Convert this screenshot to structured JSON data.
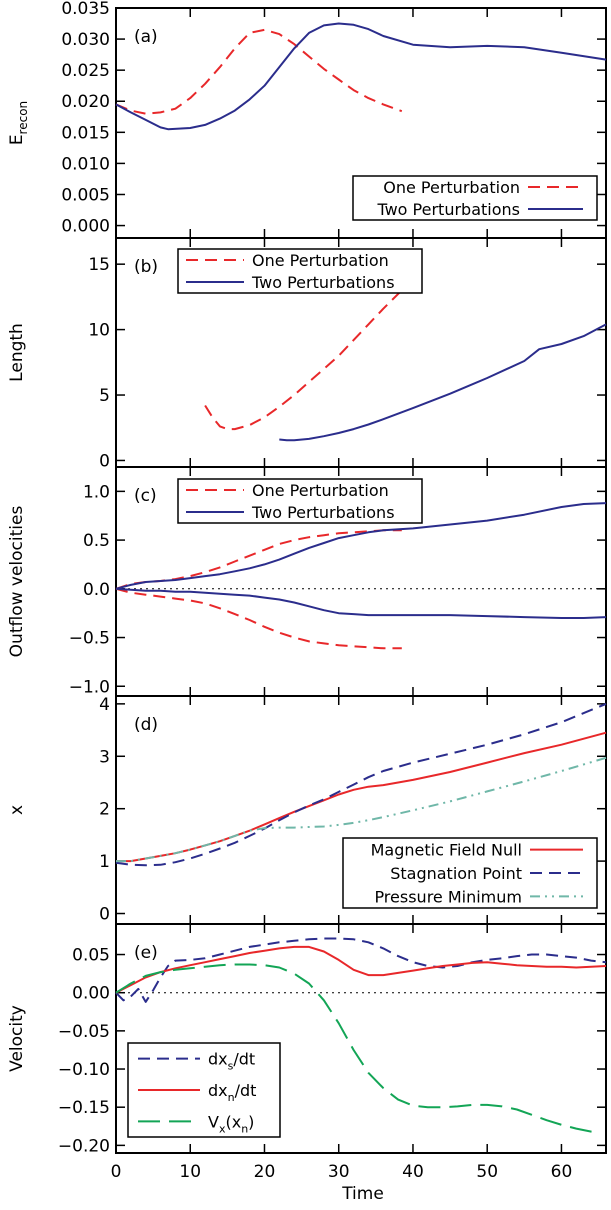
{
  "figure": {
    "xlabel": "Time",
    "xticks": [
      "0",
      "10",
      "20",
      "30",
      "40",
      "50",
      "60"
    ],
    "xlim": [
      0,
      66
    ]
  },
  "colors": {
    "red": "#e8282a",
    "blue": "#2b2d8c",
    "green": "#13a556",
    "teal": "#6fb7a8",
    "axis": "#000000"
  },
  "chart_data": [
    {
      "type": "line",
      "panel_label": "(a)",
      "ylabel": "E",
      "ylabel_sub": "recon",
      "ylim": [
        -0.002,
        0.035
      ],
      "yticks": [
        "0.000",
        "0.005",
        "0.010",
        "0.015",
        "0.020",
        "0.025",
        "0.030",
        "0.035"
      ],
      "legend_position": "bottom-right",
      "zero_line": false,
      "series": [
        {
          "name": "One Perturbation",
          "color": "#e8282a",
          "dash": "dashed",
          "x": [
            0,
            2,
            4,
            6,
            8,
            10,
            12,
            14,
            16,
            18,
            20,
            22,
            24,
            26,
            28,
            30,
            32,
            34,
            36,
            38.5
          ],
          "y": [
            0.0195,
            0.0185,
            0.018,
            0.0182,
            0.0188,
            0.0205,
            0.0228,
            0.0255,
            0.0285,
            0.031,
            0.0315,
            0.0308,
            0.0292,
            0.0272,
            0.0252,
            0.0235,
            0.0218,
            0.0205,
            0.0195,
            0.0184
          ]
        },
        {
          "name": "Two Perturbations",
          "color": "#2b2d8c",
          "dash": "solid",
          "x": [
            0,
            2,
            4,
            6,
            7,
            10,
            12,
            14,
            16,
            18,
            20,
            22,
            24,
            26,
            28,
            30,
            32,
            34,
            36,
            40,
            45,
            50,
            55,
            60,
            66
          ],
          "y": [
            0.0195,
            0.0182,
            0.017,
            0.0158,
            0.0155,
            0.0157,
            0.0162,
            0.0172,
            0.0185,
            0.0203,
            0.0225,
            0.0255,
            0.0285,
            0.031,
            0.0322,
            0.0325,
            0.0323,
            0.0316,
            0.0305,
            0.0291,
            0.0287,
            0.0289,
            0.0287,
            0.0278,
            0.0267
          ]
        }
      ]
    },
    {
      "type": "line",
      "panel_label": "(b)",
      "ylabel": "Length",
      "ylim": [
        -0.5,
        17
      ],
      "yticks": [
        "0",
        "5",
        "10",
        "15"
      ],
      "legend_position": "top-left",
      "zero_line": false,
      "series": [
        {
          "name": "One Perturbation",
          "color": "#e8282a",
          "dash": "dashed",
          "x": [
            12,
            13,
            14,
            15,
            16,
            18,
            20,
            22,
            24,
            26,
            28,
            30,
            32,
            34,
            36,
            38.5
          ],
          "y": [
            4.2,
            3.3,
            2.6,
            2.4,
            2.4,
            2.7,
            3.3,
            4.1,
            5.0,
            6.0,
            7.0,
            8.0,
            9.2,
            10.4,
            11.6,
            13.0
          ]
        },
        {
          "name": "Two Perturbations",
          "color": "#2b2d8c",
          "dash": "solid",
          "x": [
            22,
            23,
            24,
            26,
            28,
            30,
            32,
            34,
            36,
            40,
            45,
            50,
            55,
            57,
            60,
            63,
            66
          ],
          "y": [
            1.6,
            1.55,
            1.55,
            1.65,
            1.85,
            2.1,
            2.4,
            2.75,
            3.15,
            4.0,
            5.1,
            6.3,
            7.6,
            8.5,
            8.9,
            9.5,
            10.4
          ]
        }
      ]
    },
    {
      "type": "line",
      "panel_label": "(c)",
      "ylabel": "Outflow velocities",
      "ylim": [
        -1.1,
        1.25
      ],
      "yticks": [
        "−1.0",
        "−0.5",
        "0.0",
        "0.5",
        "1.0"
      ],
      "legend_position": "top-left",
      "zero_line": true,
      "series": [
        {
          "name": "One Perturbation",
          "color": "#e8282a",
          "dash": "dashed",
          "x": [
            0,
            2,
            4,
            6,
            8,
            10,
            12,
            14,
            16,
            18,
            20,
            22,
            24,
            26,
            28,
            30,
            32,
            34,
            36,
            38.5
          ],
          "y": [
            0.0,
            0.05,
            0.07,
            0.08,
            0.1,
            0.13,
            0.17,
            0.22,
            0.28,
            0.34,
            0.4,
            0.46,
            0.5,
            0.53,
            0.55,
            0.57,
            0.58,
            0.59,
            0.6,
            0.6
          ]
        },
        {
          "name": "",
          "color": "#e8282a",
          "dash": "dashed",
          "x": [
            0,
            2,
            4,
            6,
            8,
            10,
            12,
            14,
            16,
            18,
            20,
            22,
            24,
            26,
            28,
            30,
            32,
            34,
            36,
            38.5
          ],
          "y": [
            0.0,
            -0.04,
            -0.06,
            -0.08,
            -0.1,
            -0.12,
            -0.15,
            -0.2,
            -0.26,
            -0.32,
            -0.39,
            -0.45,
            -0.5,
            -0.54,
            -0.56,
            -0.58,
            -0.59,
            -0.6,
            -0.61,
            -0.61
          ]
        },
        {
          "name": "Two Perturbations",
          "color": "#2b2d8c",
          "dash": "solid",
          "x": [
            0,
            2,
            4,
            6,
            8,
            10,
            12,
            14,
            16,
            18,
            20,
            22,
            24,
            26,
            28,
            30,
            32,
            34,
            36,
            40,
            45,
            50,
            55,
            60,
            63,
            66
          ],
          "y": [
            0.0,
            0.04,
            0.07,
            0.08,
            0.09,
            0.11,
            0.13,
            0.15,
            0.18,
            0.21,
            0.25,
            0.3,
            0.36,
            0.42,
            0.47,
            0.52,
            0.55,
            0.58,
            0.6,
            0.62,
            0.66,
            0.7,
            0.76,
            0.84,
            0.87,
            0.88
          ]
        },
        {
          "name": "",
          "color": "#2b2d8c",
          "dash": "solid",
          "x": [
            0,
            2,
            4,
            6,
            8,
            10,
            12,
            14,
            16,
            18,
            20,
            22,
            24,
            26,
            28,
            30,
            32,
            34,
            36,
            40,
            45,
            50,
            55,
            60,
            63,
            66
          ],
          "y": [
            0.0,
            -0.01,
            -0.02,
            -0.02,
            -0.03,
            -0.03,
            -0.04,
            -0.05,
            -0.06,
            -0.07,
            -0.09,
            -0.11,
            -0.14,
            -0.18,
            -0.22,
            -0.25,
            -0.26,
            -0.27,
            -0.27,
            -0.27,
            -0.27,
            -0.28,
            -0.29,
            -0.3,
            -0.3,
            -0.29
          ]
        }
      ]
    },
    {
      "type": "line",
      "panel_label": "(d)",
      "ylabel": "x",
      "ylim": [
        -0.2,
        4.15
      ],
      "yticks": [
        "0",
        "1",
        "2",
        "3",
        "4"
      ],
      "legend_position": "bottom-right",
      "zero_line": false,
      "series": [
        {
          "name": "Magnetic Field Null",
          "color": "#e8282a",
          "dash": "solid",
          "x": [
            0,
            2,
            4,
            6,
            8,
            10,
            12,
            14,
            16,
            18,
            20,
            22,
            24,
            26,
            28,
            30,
            32,
            34,
            36,
            40,
            45,
            50,
            55,
            60,
            66
          ],
          "y": [
            1.0,
            1.0,
            1.05,
            1.1,
            1.15,
            1.22,
            1.3,
            1.38,
            1.48,
            1.58,
            1.7,
            1.82,
            1.94,
            2.05,
            2.16,
            2.27,
            2.36,
            2.42,
            2.45,
            2.55,
            2.7,
            2.88,
            3.06,
            3.22,
            3.45
          ]
        },
        {
          "name": "Stagnation Point",
          "color": "#2b2d8c",
          "dash": "dashed",
          "x": [
            0,
            2,
            4,
            6,
            8,
            10,
            12,
            14,
            16,
            18,
            20,
            22,
            24,
            26,
            28,
            30,
            32,
            34,
            36,
            40,
            45,
            50,
            55,
            60,
            66
          ],
          "y": [
            0.97,
            0.93,
            0.92,
            0.93,
            0.98,
            1.05,
            1.14,
            1.24,
            1.35,
            1.48,
            1.62,
            1.78,
            1.93,
            2.06,
            2.18,
            2.32,
            2.46,
            2.6,
            2.72,
            2.88,
            3.05,
            3.22,
            3.42,
            3.65,
            4.0
          ]
        },
        {
          "name": "Pressure Minimum",
          "color": "#6fb7a8",
          "dash": "dashdot",
          "x": [
            0,
            2,
            4,
            6,
            8,
            10,
            12,
            14,
            16,
            18,
            20,
            22,
            24,
            26,
            28,
            30,
            32,
            34,
            36,
            40,
            45,
            50,
            55,
            60,
            66
          ],
          "y": [
            1.0,
            1.0,
            1.05,
            1.1,
            1.15,
            1.22,
            1.3,
            1.38,
            1.48,
            1.58,
            1.63,
            1.64,
            1.64,
            1.65,
            1.66,
            1.69,
            1.73,
            1.78,
            1.84,
            1.97,
            2.14,
            2.33,
            2.52,
            2.72,
            2.97
          ]
        }
      ]
    },
    {
      "type": "line",
      "panel_label": "(e)",
      "ylabel": "Velocity",
      "ylim": [
        -0.21,
        0.09
      ],
      "yticks": [
        "−0.20",
        "−0.15",
        "−0.10",
        "−0.05",
        "0.00",
        "0.05"
      ],
      "legend_position": "bottom-left",
      "zero_line": true,
      "series": [
        {
          "name": "dx",
          "name_sub": "s",
          "name_tail": "/dt",
          "color": "#2b2d8c",
          "dash": "dashed",
          "x": [
            0,
            1,
            2,
            3,
            4,
            5,
            6,
            7,
            8,
            10,
            12,
            14,
            16,
            18,
            20,
            22,
            24,
            26,
            28,
            30,
            32,
            34,
            36,
            38,
            40,
            42,
            44,
            46,
            48,
            50,
            52,
            54,
            56,
            58,
            60,
            62,
            64,
            66
          ],
          "y": [
            0.0,
            -0.01,
            -0.005,
            0.005,
            -0.012,
            0.003,
            0.02,
            0.035,
            0.042,
            0.043,
            0.045,
            0.05,
            0.055,
            0.06,
            0.063,
            0.066,
            0.068,
            0.07,
            0.071,
            0.071,
            0.07,
            0.066,
            0.058,
            0.048,
            0.04,
            0.035,
            0.033,
            0.035,
            0.04,
            0.043,
            0.045,
            0.048,
            0.05,
            0.05,
            0.048,
            0.046,
            0.042,
            0.04
          ]
        },
        {
          "name": "dx",
          "name_sub": "n",
          "name_tail": "/dt",
          "color": "#e8282a",
          "dash": "solid",
          "x": [
            0,
            2,
            4,
            6,
            8,
            10,
            12,
            14,
            16,
            18,
            20,
            22,
            24,
            26,
            28,
            30,
            32,
            34,
            36,
            38,
            40,
            42,
            44,
            46,
            48,
            50,
            52,
            54,
            56,
            58,
            60,
            62,
            64,
            66
          ],
          "y": [
            0.0,
            0.01,
            0.02,
            0.027,
            0.032,
            0.036,
            0.04,
            0.044,
            0.048,
            0.052,
            0.055,
            0.058,
            0.06,
            0.06,
            0.054,
            0.043,
            0.03,
            0.023,
            0.023,
            0.026,
            0.029,
            0.032,
            0.035,
            0.037,
            0.039,
            0.04,
            0.038,
            0.036,
            0.035,
            0.034,
            0.034,
            0.033,
            0.034,
            0.035
          ]
        },
        {
          "name": "V",
          "name_sub": "x",
          "name_tail": "(x",
          "name_sub2": "n",
          "name_tail2": ")",
          "color": "#13a556",
          "dash": "longdash",
          "x": [
            0,
            2,
            4,
            6,
            8,
            10,
            12,
            14,
            16,
            18,
            20,
            22,
            24,
            26,
            28,
            30,
            32,
            34,
            36,
            38,
            40,
            42,
            44,
            46,
            48,
            50,
            52,
            54,
            56,
            58,
            60,
            62,
            64,
            65
          ],
          "y": [
            0.0,
            0.012,
            0.022,
            0.027,
            0.03,
            0.032,
            0.034,
            0.036,
            0.037,
            0.037,
            0.036,
            0.033,
            0.025,
            0.012,
            -0.01,
            -0.04,
            -0.075,
            -0.105,
            -0.125,
            -0.14,
            -0.148,
            -0.15,
            -0.15,
            -0.149,
            -0.147,
            -0.147,
            -0.149,
            -0.153,
            -0.16,
            -0.167,
            -0.173,
            -0.178,
            -0.182,
            -0.183
          ]
        }
      ]
    }
  ]
}
